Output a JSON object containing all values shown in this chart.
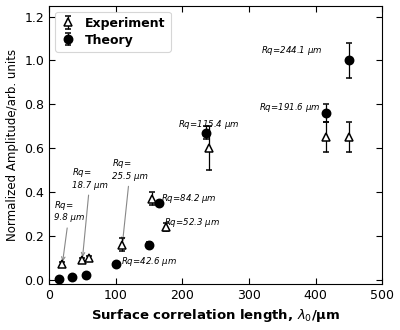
{
  "exp_x": [
    20,
    50,
    60,
    110,
    155,
    175,
    240,
    415,
    450
  ],
  "exp_y": [
    0.07,
    0.09,
    0.1,
    0.16,
    0.37,
    0.24,
    0.6,
    0.65,
    0.65
  ],
  "exp_yerr": [
    0.01,
    0.01,
    0.01,
    0.03,
    0.03,
    0.02,
    0.1,
    0.07,
    0.07
  ],
  "thy_x": [
    15,
    35,
    55,
    100,
    150,
    165,
    235,
    415,
    450
  ],
  "thy_y": [
    0.005,
    0.01,
    0.02,
    0.07,
    0.16,
    0.35,
    0.67,
    0.76,
    1.0
  ],
  "thy_yerr": [
    0.003,
    0.003,
    0.005,
    0.01,
    0.01,
    0.01,
    0.03,
    0.04,
    0.08
  ],
  "xlim": [
    0,
    500
  ],
  "ylim": [
    -0.02,
    1.25
  ],
  "yticks": [
    0.0,
    0.2,
    0.4,
    0.6,
    0.8,
    1.0,
    1.2
  ],
  "xticks": [
    0,
    100,
    200,
    300,
    400,
    500
  ],
  "xlabel": "Surface correlation length, $\\lambda_0$/μm",
  "ylabel": "Normalized Amplitude/arb. units",
  "bg": "#ffffff"
}
